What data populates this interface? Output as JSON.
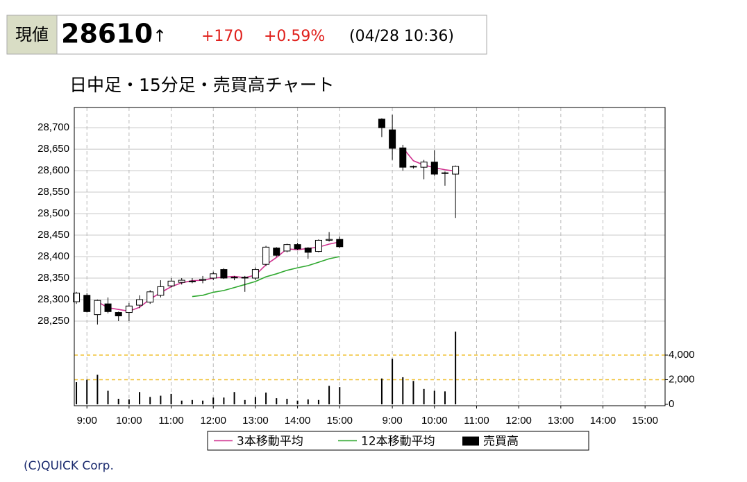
{
  "header": {
    "label": "現値",
    "price": "28610",
    "arrow": "↑",
    "change": "+170",
    "change_pct": "+0.59%",
    "timestamp": "(04/28 10:36)"
  },
  "chart_data": {
    "type": "candlestick",
    "title": "日中足・15分足・売買高チャート",
    "x": [
      -1,
      0,
      1,
      2,
      3,
      4,
      5,
      6,
      7,
      8,
      9,
      10,
      11,
      12,
      13,
      14,
      15,
      16,
      17,
      18,
      19,
      20,
      21,
      22,
      23,
      24,
      28,
      29,
      30,
      31,
      32,
      33,
      34,
      35
    ],
    "open": [
      28295,
      28310,
      28265,
      28290,
      28270,
      28270,
      28287,
      28294,
      28310,
      28332,
      28340,
      28343,
      28345,
      28350,
      28370,
      28352,
      28352,
      28350,
      28382,
      28420,
      28413,
      28428,
      28420,
      28412,
      28438,
      28440,
      28720,
      28695,
      28653,
      28610,
      28608,
      28620,
      28595,
      28592
    ],
    "high": [
      28318,
      28315,
      28300,
      28305,
      28272,
      28292,
      28310,
      28322,
      28345,
      28350,
      28350,
      28350,
      28355,
      28365,
      28373,
      28355,
      28355,
      28375,
      28425,
      28422,
      28430,
      28432,
      28422,
      28440,
      28457,
      28447,
      28722,
      28730,
      28660,
      28612,
      28625,
      28648,
      28598,
      28612
    ],
    "low": [
      28290,
      28270,
      28242,
      28268,
      28250,
      28250,
      28280,
      28290,
      28305,
      28328,
      28335,
      28338,
      28338,
      28345,
      28348,
      28345,
      28318,
      28345,
      28378,
      28400,
      28410,
      28415,
      28395,
      28410,
      28435,
      28420,
      28678,
      28625,
      28600,
      28605,
      28580,
      28588,
      28565,
      28490
    ],
    "close": [
      28315,
      28272,
      28298,
      28272,
      28262,
      28285,
      28300,
      28318,
      28330,
      28343,
      28345,
      28343,
      28347,
      28360,
      28350,
      28352,
      28350,
      28370,
      28422,
      28403,
      28428,
      28418,
      28410,
      28438,
      28440,
      28423,
      28700,
      28652,
      28608,
      28610,
      28620,
      28592,
      28595,
      28610
    ],
    "up_color": "#ffffff",
    "down_color": "#000000",
    "xlim": [
      -1.2,
      54.9
    ],
    "xticks": [
      {
        "value": 0,
        "label": "9:00"
      },
      {
        "value": 4,
        "label": "10:00"
      },
      {
        "value": 8,
        "label": "11:00"
      },
      {
        "value": 12,
        "label": "12:00"
      },
      {
        "value": 16,
        "label": "13:00"
      },
      {
        "value": 20,
        "label": "14:00"
      },
      {
        "value": 24,
        "label": "15:00"
      },
      {
        "value": 29,
        "label": "9:00"
      },
      {
        "value": 33,
        "label": "10:00"
      },
      {
        "value": 37,
        "label": "11:00"
      },
      {
        "value": 41,
        "label": "12:00"
      },
      {
        "value": 45,
        "label": "13:00"
      },
      {
        "value": 49,
        "label": "14:00"
      },
      {
        "value": 53,
        "label": "15:00"
      }
    ],
    "ylim": [
      28053,
      28747
    ],
    "yticks": [
      {
        "value": 28250,
        "label": "28,250"
      },
      {
        "value": 28300,
        "label": "28,300"
      },
      {
        "value": 28350,
        "label": "28,350"
      },
      {
        "value": 28400,
        "label": "28,400"
      },
      {
        "value": 28450,
        "label": "28,450"
      },
      {
        "value": 28500,
        "label": "28,500"
      },
      {
        "value": 28550,
        "label": "28,550"
      },
      {
        "value": 28600,
        "label": "28,600"
      },
      {
        "value": 28650,
        "label": "28,650"
      },
      {
        "value": 28700,
        "label": "28,700"
      }
    ],
    "y2lim": [
      -113,
      24113
    ],
    "y2ticks": [
      0,
      {
        "value": 2000,
        "label": "2,000"
      },
      {
        "value": 4000,
        "label": "4,000"
      }
    ],
    "grid": true,
    "series": [
      {
        "name": "3本移動平均",
        "color": "#d0318f",
        "type": "line",
        "x": [
          1,
          2,
          3,
          4,
          5,
          6,
          7,
          8,
          9,
          10,
          11,
          12,
          13,
          14,
          15,
          16,
          17,
          18,
          19,
          20,
          21,
          22,
          23,
          24,
          27,
          30,
          31,
          32,
          33,
          34,
          35
        ],
        "values": [
          28295,
          28281,
          28277,
          28273,
          28282,
          28301,
          28316,
          28330,
          28339,
          28344,
          28345,
          28350,
          28352,
          28354,
          28351,
          28357,
          28381,
          28398,
          28418,
          28416,
          28419,
          28422,
          28429,
          28434,
          null,
          28653,
          28623,
          28613,
          28607,
          28602,
          28599
        ]
      },
      {
        "name": "12本移動平均",
        "color": "#2fa82f",
        "type": "line",
        "x": [
          10,
          11,
          12,
          13,
          14,
          15,
          16,
          17,
          18,
          19,
          20,
          21,
          22,
          23,
          24
        ],
        "values": [
          28307,
          28310,
          28317,
          28321,
          28328,
          28335,
          28342,
          28353,
          28360,
          28368,
          28374,
          28379,
          28387,
          28395,
          28400
        ]
      },
      {
        "name": "売買高",
        "color": "#000000",
        "type": "bar",
        "axis": "y2",
        "x": [
          -1,
          0,
          1,
          2,
          3,
          4,
          5,
          6,
          7,
          8,
          9,
          10,
          11,
          12,
          13,
          14,
          15,
          16,
          17,
          18,
          19,
          20,
          21,
          22,
          23,
          24,
          28,
          29,
          30,
          31,
          32,
          33,
          34,
          35
        ],
        "values": [
          1800,
          2000,
          2400,
          1100,
          450,
          400,
          1000,
          600,
          700,
          850,
          300,
          350,
          300,
          550,
          550,
          1000,
          350,
          600,
          950,
          500,
          450,
          300,
          400,
          350,
          1500,
          1400,
          2100,
          3700,
          2200,
          1900,
          1250,
          1100,
          1050,
          5900
        ]
      }
    ],
    "copyright": "(C)QUICK Corp."
  }
}
